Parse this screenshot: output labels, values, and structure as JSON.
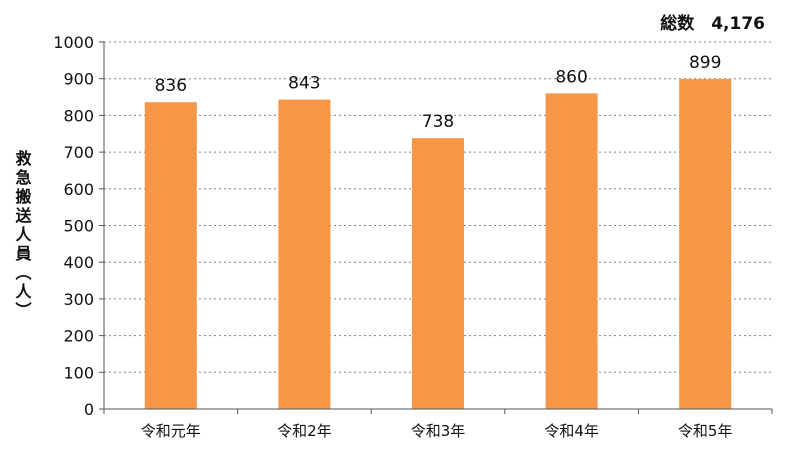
{
  "chart_data": {
    "type": "bar",
    "categories": [
      "令和元年",
      "令和2年",
      "令和3年",
      "令和4年",
      "令和5年"
    ],
    "values": [
      836,
      843,
      738,
      860,
      899
    ],
    "data_labels": [
      "836",
      "843",
      "738",
      "860",
      "899"
    ],
    "title": "",
    "xlabel": "",
    "ylabel": "救急搬送人員（人）",
    "ylim": [
      0,
      1000
    ],
    "yticks": [
      0,
      100,
      200,
      300,
      400,
      500,
      600,
      700,
      800,
      900,
      1000
    ],
    "ytick_labels": [
      "0",
      "100",
      "200",
      "300",
      "400",
      "500",
      "600",
      "700",
      "800",
      "900",
      "1000"
    ],
    "grid": true,
    "annotation": "総数　4,176",
    "bar_color": "#F79646",
    "grid_color": "#808080"
  }
}
